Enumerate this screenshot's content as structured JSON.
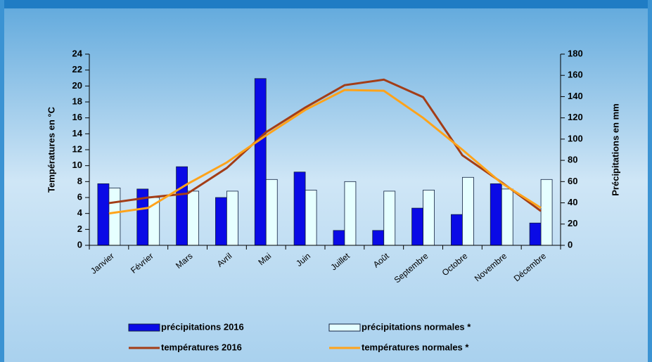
{
  "chart_data": {
    "type": "bar",
    "categories": [
      "Janvier",
      "Février",
      "Mars",
      "Avril",
      "Mai",
      "Juin",
      "Juillet",
      "Août",
      "Septembre",
      "Octobre",
      "Novembre",
      "Décembre"
    ],
    "ylabel": "Températures en °C",
    "y2label": "Précipitations en mm",
    "ylim": [
      0,
      24
    ],
    "yticks": [
      0,
      2,
      4,
      6,
      8,
      10,
      12,
      14,
      16,
      18,
      20,
      22,
      24
    ],
    "y2lim": [
      0,
      180
    ],
    "y2ticks": [
      0,
      20,
      40,
      60,
      80,
      100,
      120,
      140,
      160,
      180
    ],
    "series": [
      {
        "name": "précipitations 2016",
        "type": "bar",
        "axis": "y2",
        "color": "#0a0ae6",
        "values": [
          58,
          53,
          74,
          45,
          157,
          69,
          14,
          14,
          35,
          29,
          58,
          21
        ]
      },
      {
        "name": "précipitations normales *",
        "type": "bar",
        "axis": "y2",
        "color": "#e6ffff",
        "values": [
          54,
          45,
          51,
          51,
          62,
          52,
          60,
          51,
          52,
          64,
          53,
          62
        ]
      },
      {
        "name": "températures 2016",
        "type": "line",
        "color": "#a33d17",
        "values": [
          5.3,
          6.0,
          6.5,
          9.7,
          14.2,
          17.3,
          20.1,
          20.8,
          18.6,
          11.3,
          7.9,
          4.3
        ]
      },
      {
        "name": "températures normales *",
        "type": "line",
        "color": "#ffa31a",
        "values": [
          4.0,
          4.7,
          7.7,
          10.4,
          13.8,
          17.0,
          19.5,
          19.4,
          16.0,
          12.0,
          7.8,
          4.7
        ]
      }
    ]
  }
}
